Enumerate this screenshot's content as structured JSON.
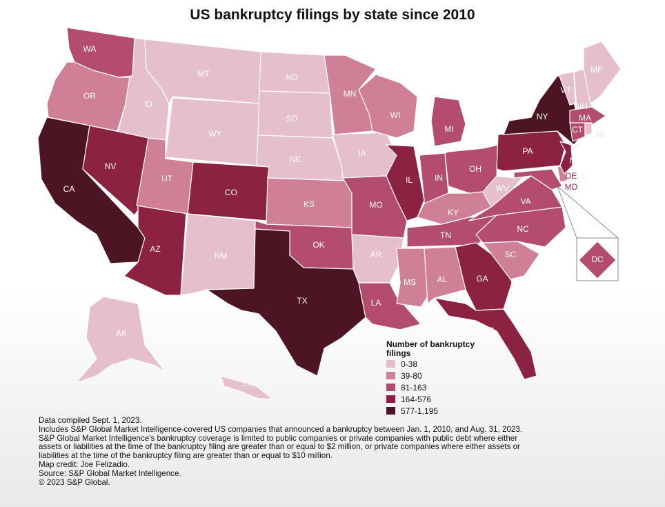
{
  "title": "US bankruptcy filings by state since 2010",
  "colors": {
    "c1": "#e6bfcc",
    "c2": "#cf8097",
    "c3": "#b44c6f",
    "c4": "#8b2242",
    "c5": "#4d1424"
  },
  "legend": {
    "title": "Number of bankruptcy filings",
    "items": [
      {
        "label": "0-38",
        "cls": "c1"
      },
      {
        "label": "39-80",
        "cls": "c2"
      },
      {
        "label": "81-163",
        "cls": "c3"
      },
      {
        "label": "164-576",
        "cls": "c4"
      },
      {
        "label": "577-1,195",
        "cls": "c5"
      }
    ]
  },
  "states": [
    {
      "abbr": "WA",
      "cls": "c3"
    },
    {
      "abbr": "OR",
      "cls": "c2"
    },
    {
      "abbr": "CA",
      "cls": "c5"
    },
    {
      "abbr": "ID",
      "cls": "c1"
    },
    {
      "abbr": "NV",
      "cls": "c4"
    },
    {
      "abbr": "AZ",
      "cls": "c4"
    },
    {
      "abbr": "UT",
      "cls": "c2"
    },
    {
      "abbr": "MT",
      "cls": "c1"
    },
    {
      "abbr": "WY",
      "cls": "c1"
    },
    {
      "abbr": "CO",
      "cls": "c4"
    },
    {
      "abbr": "NM",
      "cls": "c1"
    },
    {
      "abbr": "ND",
      "cls": "c1"
    },
    {
      "abbr": "SD",
      "cls": "c1"
    },
    {
      "abbr": "NE",
      "cls": "c1"
    },
    {
      "abbr": "KS",
      "cls": "c2"
    },
    {
      "abbr": "OK",
      "cls": "c3"
    },
    {
      "abbr": "TX",
      "cls": "c5"
    },
    {
      "abbr": "MN",
      "cls": "c2"
    },
    {
      "abbr": "IA",
      "cls": "c1"
    },
    {
      "abbr": "MO",
      "cls": "c3"
    },
    {
      "abbr": "AR",
      "cls": "c1"
    },
    {
      "abbr": "LA",
      "cls": "c3"
    },
    {
      "abbr": "WI",
      "cls": "c2"
    },
    {
      "abbr": "IL",
      "cls": "c4"
    },
    {
      "abbr": "MI",
      "cls": "c3"
    },
    {
      "abbr": "IN",
      "cls": "c3"
    },
    {
      "abbr": "OH",
      "cls": "c3"
    },
    {
      "abbr": "KY",
      "cls": "c2"
    },
    {
      "abbr": "TN",
      "cls": "c3"
    },
    {
      "abbr": "MS",
      "cls": "c2"
    },
    {
      "abbr": "AL",
      "cls": "c2"
    },
    {
      "abbr": "GA",
      "cls": "c4"
    },
    {
      "abbr": "FL",
      "cls": "c4"
    },
    {
      "abbr": "SC",
      "cls": "c2"
    },
    {
      "abbr": "NC",
      "cls": "c3"
    },
    {
      "abbr": "VA",
      "cls": "c3"
    },
    {
      "abbr": "WV",
      "cls": "c1"
    },
    {
      "abbr": "PA",
      "cls": "c4"
    },
    {
      "abbr": "NY",
      "cls": "c5"
    },
    {
      "abbr": "NJ",
      "cls": "c4"
    },
    {
      "abbr": "DE",
      "cls": "c2"
    },
    {
      "abbr": "MD",
      "cls": "c3"
    },
    {
      "abbr": "DC",
      "cls": "c3"
    },
    {
      "abbr": "VT",
      "cls": "c1"
    },
    {
      "abbr": "NH",
      "cls": "c1"
    },
    {
      "abbr": "ME",
      "cls": "c1"
    },
    {
      "abbr": "MA",
      "cls": "c3"
    },
    {
      "abbr": "CT",
      "cls": "c3"
    },
    {
      "abbr": "RI",
      "cls": "c1"
    },
    {
      "abbr": "AK",
      "cls": "c1"
    },
    {
      "abbr": "HI",
      "cls": "c1"
    }
  ],
  "notes": [
    "Data compiled Sept. 1, 2023.",
    "Includes S&P Global Market Intelligence-covered US companies that announced a bankruptcy between Jan. 1, 2010, and Aug. 31, 2023.",
    "S&P Global Market Intelligence's bankruptcy coverage is limited to public companies or private companies with public debt where either",
    "assets or liabilities at the time of the bankruptcy filing are greater than or equal to $2 million, or private companies where either assets or",
    "liabilities at the time of the bankruptcy filing are greater than or equal to $10 million.",
    "Map credit: Joe Felizadio.",
    "Source: S&P Global Market Intelligence.",
    "© 2023 S&P Global."
  ]
}
